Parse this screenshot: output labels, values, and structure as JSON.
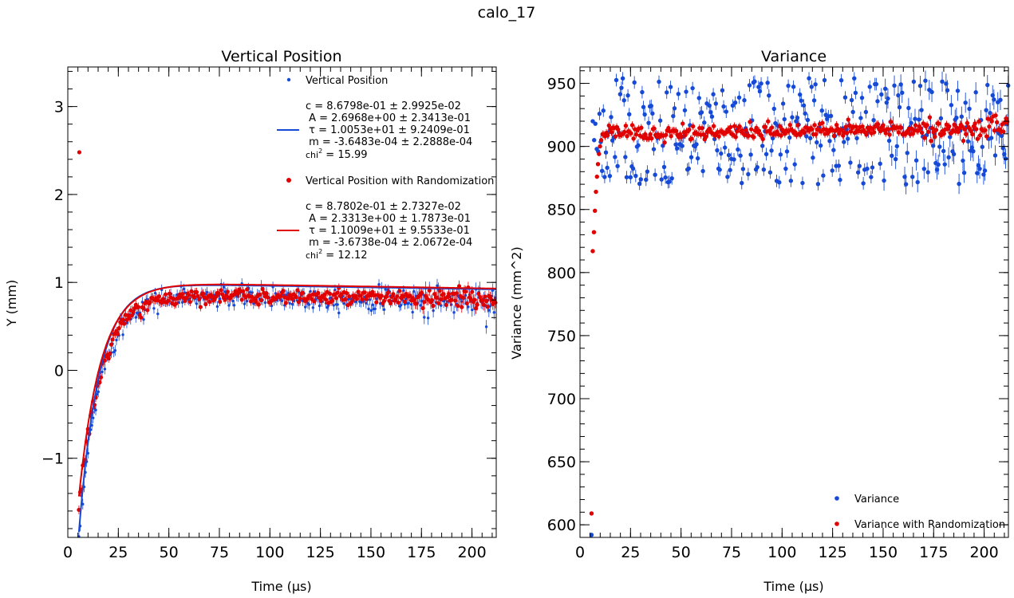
{
  "figure": {
    "suptitle": "calo_17"
  },
  "colors": {
    "blue": "#1549d6",
    "red": "#e00000",
    "axis": "#000000"
  },
  "chart_data": [
    {
      "type": "scatter",
      "title": "Vertical Position",
      "xlabel": "Time (µs)",
      "ylabel": "Y (mm)",
      "xlim": [
        0,
        212
      ],
      "ylim": [
        -1.9,
        3.45
      ],
      "xticks": [
        0,
        25,
        50,
        75,
        100,
        125,
        150,
        175,
        200
      ],
      "xtick_labels": [
        "0",
        "25",
        "50",
        "75",
        "100",
        "125",
        "150",
        "175",
        "200"
      ],
      "yticks": [
        -1,
        0,
        1,
        2,
        3
      ],
      "ytick_labels": [
        "−1",
        "0",
        "1",
        "2",
        "3"
      ],
      "legend_position": "top-right",
      "series": [
        {
          "name": "Vertical Position",
          "color": "blue",
          "marker_size": "small",
          "model": {
            "c": 0.86798,
            "A": 2.6968,
            "tau": 10.053,
            "m": -0.00036483
          },
          "fit_start": 6,
          "x_start": 5.5,
          "x_step": 0.64,
          "x_end": 212,
          "noise": 0.06,
          "error": 0.06,
          "outliers": [
            [
              5.7,
              2.48
            ]
          ],
          "fit_lines": [
            "c = 8.6798e-01 ± 2.9925e-02",
            " A = 2.6968e+00 ± 2.3413e-01",
            " τ = 1.0053e+01 ± 9.2409e-01",
            " m = -3.6483e-04 ± 2.2888e-04"
          ],
          "chi_label": "chi",
          "chi_exp": "2",
          "chi_value": " = 15.99"
        },
        {
          "name": "Vertical Position with Randomization",
          "color": "red",
          "marker_size": "large",
          "model": {
            "c": 0.87802,
            "A": 2.3313,
            "tau": 11.009,
            "m": -0.00036738
          },
          "fit_start": 6,
          "x_start": 5.5,
          "x_step": 0.64,
          "x_end": 212,
          "noise": 0.04,
          "error": 0.05,
          "outliers": [],
          "fit_lines": [
            "c = 8.7802e-01 ± 2.7327e-02",
            " A = 2.3313e+00 ± 1.7873e-01",
            " τ = 1.1009e+01 ± 9.5533e-01",
            " m = -3.6738e-04 ± 2.0672e-04"
          ],
          "chi_label": "chi",
          "chi_exp": "2",
          "chi_value": " = 12.12"
        }
      ]
    },
    {
      "type": "scatter",
      "title": "Variance",
      "xlabel": "Time (µs)",
      "ylabel": "Variance (mm^2)",
      "xlim": [
        0,
        212
      ],
      "ylim": [
        590,
        963
      ],
      "xticks": [
        0,
        25,
        50,
        75,
        100,
        125,
        150,
        175,
        200
      ],
      "xtick_labels": [
        "0",
        "25",
        "50",
        "75",
        "100",
        "125",
        "150",
        "175",
        "200"
      ],
      "yticks": [
        600,
        650,
        700,
        750,
        800,
        850,
        900,
        950
      ],
      "ytick_labels": [
        "600",
        "650",
        "700",
        "750",
        "800",
        "850",
        "900",
        "950"
      ],
      "legend_position": "lower-right",
      "series": [
        {
          "name": "Variance",
          "color": "blue",
          "x_start": 5.7,
          "x_step": 0.64,
          "x_end": 212,
          "base": 912,
          "spread": 42,
          "drift": 0.0,
          "error": 5,
          "early": [
            [
              5.7,
              592
            ],
            [
              6.3,
              920
            ],
            [
              7.0,
              905
            ],
            [
              7.6,
              918
            ],
            [
              8.3,
              898
            ],
            [
              9.0,
              896
            ]
          ]
        },
        {
          "name": "Variance with Randomization",
          "color": "red",
          "x_start": 5.7,
          "x_step": 0.64,
          "x_end": 212,
          "base": 910,
          "spread": 3,
          "drift": 0.025,
          "error": 3,
          "early": [
            [
              5.7,
              609
            ],
            [
              6.3,
              817
            ],
            [
              6.9,
              832
            ],
            [
              7.4,
              849
            ],
            [
              7.9,
              864
            ],
            [
              8.4,
              876
            ],
            [
              8.9,
              886
            ],
            [
              9.4,
              894
            ],
            [
              9.9,
              900
            ],
            [
              10.5,
              905
            ]
          ]
        }
      ]
    }
  ]
}
